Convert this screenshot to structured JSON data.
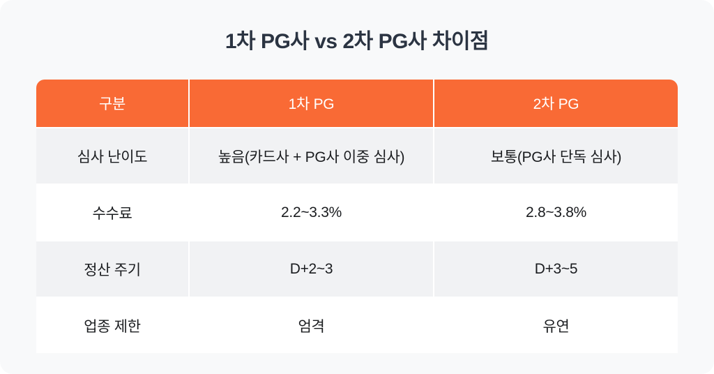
{
  "title": "1차 PG사 vs 2차 PG사 차이점",
  "colors": {
    "card_background": "#F8F9FA",
    "header_background": "#F96A35",
    "header_text": "#FFFFFF",
    "alt_row_background": "#F1F2F4",
    "plain_row_background": "#FFFFFF",
    "title_text": "#2B3442",
    "body_text": "#1A1C1F",
    "divider": "#FFFFFF"
  },
  "chart_data": {
    "type": "table",
    "title": "1차 PG사 vs 2차 PG사 차이점",
    "columns": [
      "구분",
      "1차 PG",
      "2차 PG"
    ],
    "rows": [
      [
        "심사 난이도",
        "높음(카드사 + PG사 이중 심사)",
        "보통(PG사 단독 심사)"
      ],
      [
        "수수료",
        "2.2~3.3%",
        "2.8~3.8%"
      ],
      [
        "정산 주기",
        "D+2~3",
        "D+3~5"
      ],
      [
        "업종 제한",
        "엄격",
        "유연"
      ]
    ],
    "layout": {
      "header_style": "solid-orange",
      "row_striping": "gray-white-alternating",
      "cell_alignment": "center",
      "grid": "2px white gaps between all cells"
    }
  }
}
